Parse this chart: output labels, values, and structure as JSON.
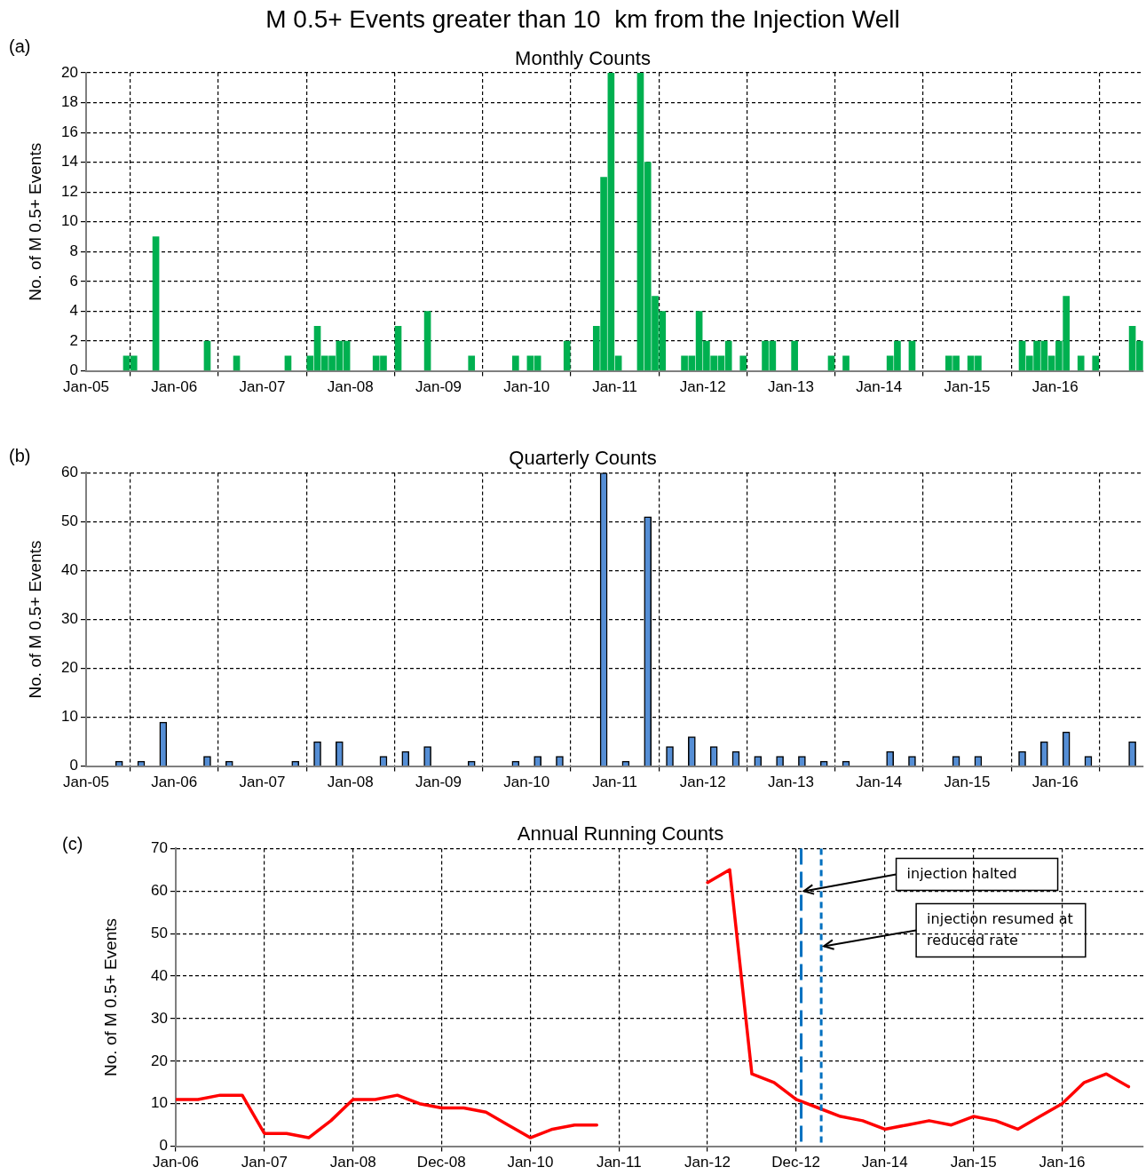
{
  "chart_data": [
    {
      "type": "bar",
      "title": "M 0.5+ Events greater than 10  km from the Injection Well",
      "subtitle": "Monthly Counts",
      "ylabel": "No. of M 0.5+ Events",
      "annotations": [
        "(a)"
      ],
      "color": "#00b050",
      "x": [
        "2005-06",
        "2005-07",
        "2005-10",
        "2006-05",
        "2006-09",
        "2007-04",
        "2007-07",
        "2007-08",
        "2007-09",
        "2007-10",
        "2007-11",
        "2007-12",
        "2008-04",
        "2008-05",
        "2008-07",
        "2008-11",
        "2009-05",
        "2009-11",
        "2010-01",
        "2010-02",
        "2010-06",
        "2010-10",
        "2010-11",
        "2010-12",
        "2011-01",
        "2011-04",
        "2011-05",
        "2011-06",
        "2011-07",
        "2011-10",
        "2011-11",
        "2011-12",
        "2012-01",
        "2012-02",
        "2012-03",
        "2012-04",
        "2012-06",
        "2012-09",
        "2012-10",
        "2013-01",
        "2013-06",
        "2013-08",
        "2014-02",
        "2014-03",
        "2014-05",
        "2014-10",
        "2014-11",
        "2015-01",
        "2015-02",
        "2015-08",
        "2015-09",
        "2015-10",
        "2015-11",
        "2015-12",
        "2016-01",
        "2016-02",
        "2016-04",
        "2016-06",
        "2016-11",
        "2016-12"
      ],
      "values": [
        1,
        1,
        9,
        2,
        1,
        1,
        1,
        3,
        1,
        1,
        2,
        2,
        1,
        1,
        3,
        4,
        1,
        1,
        1,
        1,
        2,
        3,
        13,
        20,
        1,
        20,
        14,
        5,
        4,
        1,
        1,
        4,
        2,
        1,
        1,
        2,
        1,
        2,
        2,
        2,
        1,
        1,
        1,
        2,
        2,
        1,
        1,
        1,
        1,
        2,
        1,
        2,
        2,
        1,
        2,
        5,
        1,
        1,
        3,
        2
      ],
      "xlim": [
        "2005-01",
        "2017-01"
      ],
      "xticks": [
        {
          "value": "2005-01",
          "label": "Jan-05"
        },
        {
          "value": "2006-01",
          "label": "Jan-06"
        },
        {
          "value": "2007-01",
          "label": "Jan-07"
        },
        {
          "value": "2008-01",
          "label": "Jan-08"
        },
        {
          "value": "2009-01",
          "label": "Jan-09"
        },
        {
          "value": "2010-01",
          "label": "Jan-10"
        },
        {
          "value": "2011-01",
          "label": "Jan-11"
        },
        {
          "value": "2012-01",
          "label": "Jan-12"
        },
        {
          "value": "2013-01",
          "label": "Jan-13"
        },
        {
          "value": "2014-01",
          "label": "Jan-14"
        },
        {
          "value": "2015-01",
          "label": "Jan-15"
        },
        {
          "value": "2016-01",
          "label": "Jan-16"
        }
      ],
      "ylim": [
        0,
        20
      ],
      "yticks": [
        0,
        2,
        4,
        6,
        8,
        10,
        12,
        14,
        16,
        18,
        20
      ],
      "grid": true
    },
    {
      "type": "bar",
      "title": "Quarterly Counts",
      "ylabel": "No. of M 0.5+ Events",
      "annotations": [
        "(b)"
      ],
      "color": "#558ed5",
      "x": [
        "2005-05",
        "2005-08",
        "2005-11",
        "2006-05",
        "2006-08",
        "2007-05",
        "2007-08",
        "2007-11",
        "2008-05",
        "2008-08",
        "2008-11",
        "2009-05",
        "2009-11",
        "2010-02",
        "2010-05",
        "2010-11",
        "2011-02",
        "2011-05",
        "2011-08",
        "2011-11",
        "2012-02",
        "2012-05",
        "2012-08",
        "2012-11",
        "2013-02",
        "2013-05",
        "2013-08",
        "2014-02",
        "2014-05",
        "2014-11",
        "2015-02",
        "2015-08",
        "2015-11",
        "2016-02",
        "2016-05",
        "2016-11"
      ],
      "values": [
        1,
        1,
        9,
        2,
        1,
        1,
        5,
        5,
        2,
        3,
        4,
        1,
        1,
        2,
        2,
        60,
        1,
        51,
        4,
        6,
        4,
        3,
        2,
        2,
        2,
        1,
        1,
        3,
        2,
        2,
        2,
        3,
        5,
        7,
        2,
        5
      ],
      "xlim": [
        "2005-01",
        "2017-01"
      ],
      "xticks": [
        {
          "value": "2005-01",
          "label": "Jan-05"
        },
        {
          "value": "2006-01",
          "label": "Jan-06"
        },
        {
          "value": "2007-01",
          "label": "Jan-07"
        },
        {
          "value": "2008-01",
          "label": "Jan-08"
        },
        {
          "value": "2009-01",
          "label": "Jan-09"
        },
        {
          "value": "2010-01",
          "label": "Jan-10"
        },
        {
          "value": "2011-01",
          "label": "Jan-11"
        },
        {
          "value": "2012-01",
          "label": "Jan-12"
        },
        {
          "value": "2013-01",
          "label": "Jan-13"
        },
        {
          "value": "2014-01",
          "label": "Jan-14"
        },
        {
          "value": "2015-01",
          "label": "Jan-15"
        },
        {
          "value": "2016-01",
          "label": "Jan-16"
        }
      ],
      "ylim": [
        0,
        60
      ],
      "yticks": [
        0,
        10,
        20,
        30,
        40,
        50,
        60
      ],
      "grid": true
    },
    {
      "type": "line",
      "title": "Annual Running Counts",
      "ylabel": "No. of M 0.5+ Events",
      "annotations": [
        "(c)"
      ],
      "color": "#ff0000",
      "marker": "none",
      "x": [
        "2006-01",
        "2006-04",
        "2006-07",
        "2006-10",
        "2007-01",
        "2007-04",
        "2007-07",
        "2007-10",
        "2008-01",
        "2008-04",
        "2008-07",
        "2008-10",
        "2009-01",
        "2009-04",
        "2009-07",
        "2009-10",
        "2010-01",
        "2010-04",
        "2010-07",
        "2010-10",
        "2011-01",
        "2011-04",
        "2011-07",
        "2011-10",
        "2012-01",
        "2012-04",
        "2012-07",
        "2012-10",
        "2013-01",
        "2013-04",
        "2013-07",
        "2013-10",
        "2014-01",
        "2014-04",
        "2014-07",
        "2014-10",
        "2015-01",
        "2015-04",
        "2015-07",
        "2015-10",
        "2016-01",
        "2016-04",
        "2016-07",
        "2016-10"
      ],
      "values": [
        11,
        11,
        12,
        12,
        3,
        3,
        2,
        6,
        11,
        11,
        12,
        10,
        9,
        9,
        8,
        5,
        2,
        4,
        5,
        5,
        null,
        null,
        null,
        null,
        62,
        65,
        17,
        15,
        11,
        9,
        7,
        6,
        4,
        5,
        6,
        5,
        7,
        6,
        4,
        7,
        10,
        15,
        17,
        14
      ],
      "xlim": [
        "2006-01",
        "2016-12"
      ],
      "xticks": [
        {
          "value": "2006-01",
          "label": "Jan-06"
        },
        {
          "value": "2007-01",
          "label": "Jan-07"
        },
        {
          "value": "2008-01",
          "label": "Jan-08"
        },
        {
          "value": "2008-12-31",
          "label": "Dec-08"
        },
        {
          "value": "2010-01",
          "label": "Jan-10"
        },
        {
          "value": "2011-01",
          "label": "Jan-11"
        },
        {
          "value": "2012-01",
          "label": "Jan-12"
        },
        {
          "value": "2012-12-31",
          "label": "Dec-12"
        },
        {
          "value": "2014-01",
          "label": "Jan-14"
        },
        {
          "value": "2015-01",
          "label": "Jan-15"
        },
        {
          "value": "2016-01",
          "label": "Jan-16"
        }
      ],
      "ylim": [
        0,
        70
      ],
      "yticks": [
        0,
        10,
        20,
        30,
        40,
        50,
        60,
        70
      ],
      "grid": true,
      "ref_lines": [
        {
          "axis": "x",
          "value": "2013-01-22",
          "label": "injection halted",
          "color": "#0070c0",
          "line_style": "dashed"
        },
        {
          "axis": "x",
          "value": "2013-04-13",
          "label": "injection resumed at reduced rate",
          "color": "#0070c0",
          "line_style": "dotted"
        }
      ]
    }
  ]
}
